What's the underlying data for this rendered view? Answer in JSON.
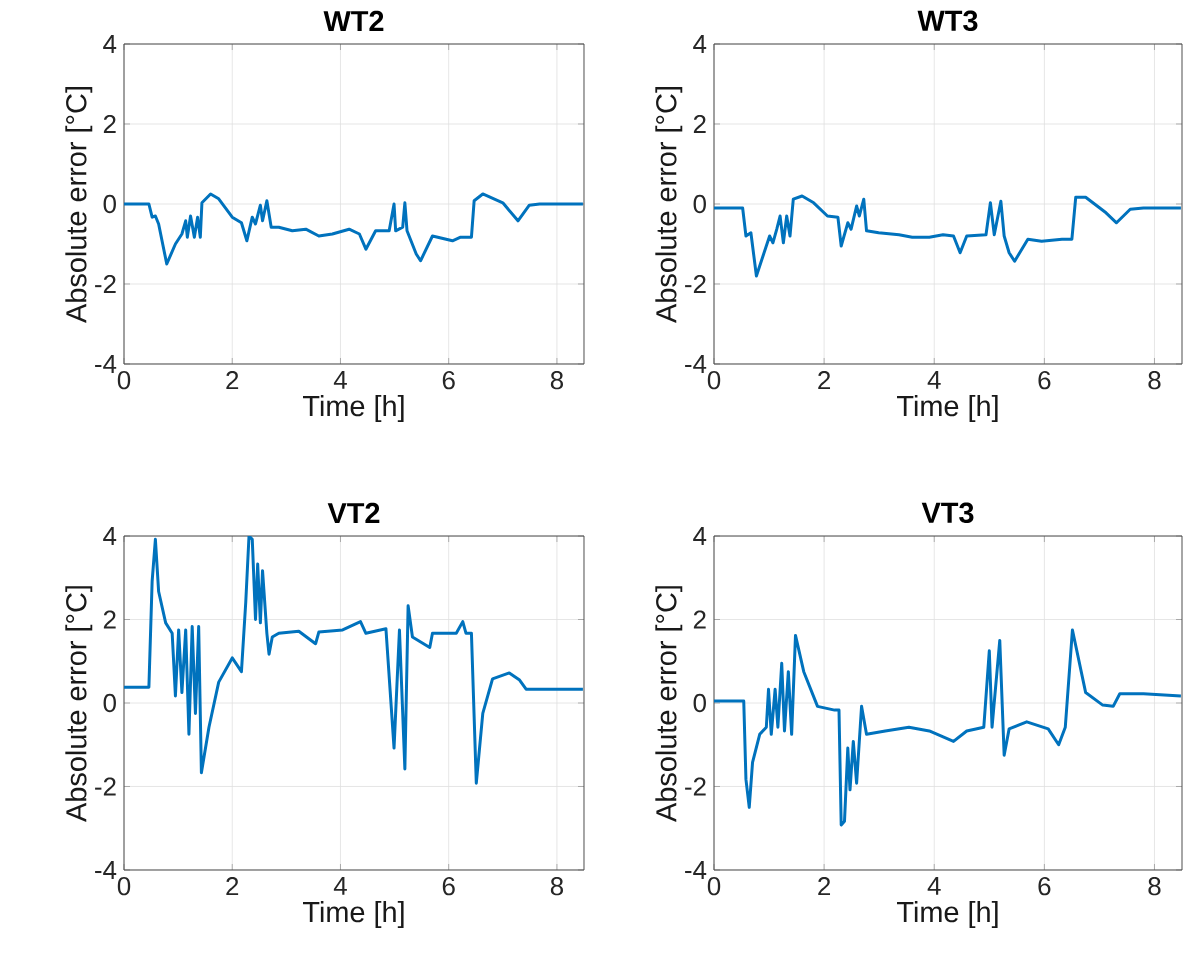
{
  "chart_data": [
    {
      "type": "line",
      "title": "WT2",
      "xlabel": "Time [h]",
      "ylabel": "Absolute error [°C]",
      "xlim": [
        0,
        8.5
      ],
      "ylim": [
        -4,
        4
      ],
      "xticks": [
        0,
        2,
        4,
        6,
        8
      ],
      "yticks": [
        -4,
        -2,
        0,
        2,
        4
      ],
      "grid": true,
      "color": "#0072bd",
      "x": [
        0,
        0.46,
        0.52,
        0.58,
        0.64,
        0.79,
        0.95,
        1.07,
        1.14,
        1.17,
        1.23,
        1.3,
        1.36,
        1.41,
        1.44,
        1.6,
        1.75,
        2.0,
        2.17,
        2.27,
        2.37,
        2.43,
        2.52,
        2.56,
        2.64,
        2.72,
        2.86,
        3.11,
        3.36,
        3.6,
        3.85,
        4.16,
        4.35,
        4.47,
        4.65,
        4.9,
        4.99,
        5.02,
        5.15,
        5.19,
        5.23,
        5.4,
        5.48,
        5.7,
        6.07,
        6.22,
        6.42,
        6.47,
        6.63,
        7.0,
        7.28,
        7.49,
        7.68,
        8.48
      ],
      "values": [
        0,
        0,
        -0.33,
        -0.3,
        -0.5,
        -1.5,
        -1.0,
        -0.75,
        -0.42,
        -0.83,
        -0.3,
        -0.83,
        -0.33,
        -0.83,
        0.03,
        0.25,
        0.13,
        -0.33,
        -0.47,
        -0.92,
        -0.33,
        -0.5,
        -0.03,
        -0.42,
        0.08,
        -0.58,
        -0.58,
        -0.67,
        -0.63,
        -0.8,
        -0.75,
        -0.63,
        -0.75,
        -1.13,
        -0.67,
        -0.67,
        0,
        -0.67,
        -0.58,
        0.03,
        -0.67,
        -1.25,
        -1.42,
        -0.8,
        -0.92,
        -0.83,
        -0.83,
        0.08,
        0.25,
        0.03,
        -0.42,
        -0.03,
        0,
        0
      ]
    },
    {
      "type": "line",
      "title": "WT3",
      "xlabel": "Time [h]",
      "ylabel": "Absolute error [°C]",
      "xlim": [
        0,
        8.5
      ],
      "ylim": [
        -4,
        4
      ],
      "xticks": [
        0,
        2,
        4,
        6,
        8
      ],
      "yticks": [
        -4,
        -2,
        0,
        2,
        4
      ],
      "grid": true,
      "color": "#0072bd",
      "x": [
        0,
        0.52,
        0.58,
        0.67,
        0.77,
        0.89,
        1.01,
        1.07,
        1.14,
        1.2,
        1.26,
        1.32,
        1.38,
        1.44,
        1.6,
        1.81,
        2.06,
        2.25,
        2.31,
        2.43,
        2.49,
        2.59,
        2.64,
        2.72,
        2.77,
        2.99,
        3.36,
        3.6,
        3.91,
        4.16,
        4.35,
        4.47,
        4.59,
        4.94,
        5.02,
        5.09,
        5.21,
        5.27,
        5.36,
        5.46,
        5.7,
        5.95,
        6.32,
        6.5,
        6.57,
        6.75,
        7.12,
        7.31,
        7.56,
        7.8,
        8.48
      ],
      "values": [
        -0.1,
        -0.1,
        -0.8,
        -0.72,
        -1.8,
        -1.3,
        -0.8,
        -0.97,
        -0.63,
        -0.3,
        -0.97,
        -0.3,
        -0.8,
        0.12,
        0.2,
        0.03,
        -0.3,
        -0.33,
        -1.05,
        -0.47,
        -0.63,
        -0.05,
        -0.3,
        0.12,
        -0.67,
        -0.72,
        -0.77,
        -0.83,
        -0.83,
        -0.77,
        -0.8,
        -1.22,
        -0.8,
        -0.77,
        0.03,
        -0.77,
        0.07,
        -0.8,
        -1.22,
        -1.43,
        -0.88,
        -0.93,
        -0.88,
        -0.88,
        0.17,
        0.17,
        -0.22,
        -0.47,
        -0.13,
        -0.1,
        -0.1
      ]
    },
    {
      "type": "line",
      "title": "VT2",
      "xlabel": "Time [h]",
      "ylabel": "Absolute error [°C]",
      "xlim": [
        0,
        8.5
      ],
      "ylim": [
        -4,
        4
      ],
      "xticks": [
        0,
        2,
        4,
        6,
        8
      ],
      "yticks": [
        -4,
        -2,
        0,
        2,
        4
      ],
      "grid": true,
      "color": "#0072bd",
      "x": [
        0,
        0.46,
        0.52,
        0.58,
        0.64,
        0.77,
        0.89,
        0.95,
        1.01,
        1.07,
        1.14,
        1.2,
        1.26,
        1.32,
        1.38,
        1.43,
        1.57,
        1.75,
        2.0,
        2.17,
        2.25,
        2.31,
        2.37,
        2.43,
        2.47,
        2.52,
        2.56,
        2.64,
        2.68,
        2.74,
        2.86,
        3.23,
        3.54,
        3.6,
        4.04,
        4.37,
        4.47,
        4.84,
        4.99,
        5.09,
        5.19,
        5.25,
        5.33,
        5.65,
        5.7,
        6.14,
        6.26,
        6.32,
        6.42,
        6.51,
        6.63,
        6.81,
        7.12,
        7.31,
        7.43,
        8.48
      ],
      "values": [
        0.38,
        0.38,
        2.92,
        3.92,
        2.67,
        1.92,
        1.67,
        0.17,
        1.75,
        0.25,
        1.75,
        -0.75,
        1.83,
        -0.25,
        1.83,
        -1.67,
        -0.58,
        0.5,
        1.08,
        0.75,
        2.42,
        4.0,
        3.92,
        2.0,
        3.33,
        1.92,
        3.17,
        1.67,
        1.17,
        1.58,
        1.67,
        1.72,
        1.42,
        1.7,
        1.75,
        1.95,
        1.67,
        1.78,
        -1.08,
        1.75,
        -1.58,
        2.33,
        1.58,
        1.33,
        1.67,
        1.67,
        1.95,
        1.67,
        1.67,
        -1.92,
        -0.25,
        0.58,
        0.72,
        0.55,
        0.33,
        0.33
      ]
    },
    {
      "type": "line",
      "title": "VT3",
      "xlabel": "Time [h]",
      "ylabel": "Absolute error [°C]",
      "xlim": [
        0,
        8.5
      ],
      "ylim": [
        -4,
        4
      ],
      "xticks": [
        0,
        2,
        4,
        6,
        8
      ],
      "yticks": [
        -4,
        -2,
        0,
        2,
        4
      ],
      "grid": true,
      "color": "#0072bd",
      "x": [
        0,
        0.54,
        0.58,
        0.64,
        0.7,
        0.83,
        0.95,
        0.99,
        1.04,
        1.11,
        1.16,
        1.23,
        1.28,
        1.35,
        1.41,
        1.48,
        1.63,
        1.88,
        2.19,
        2.27,
        2.31,
        2.37,
        2.43,
        2.47,
        2.53,
        2.59,
        2.68,
        2.77,
        3.11,
        3.54,
        3.91,
        4.35,
        4.59,
        4.9,
        5.0,
        5.05,
        5.19,
        5.27,
        5.36,
        5.68,
        6.07,
        6.26,
        6.38,
        6.51,
        6.75,
        7.06,
        7.25,
        7.37,
        7.8,
        8.48
      ],
      "values": [
        0.05,
        0.05,
        -1.83,
        -2.5,
        -1.42,
        -0.75,
        -0.58,
        0.33,
        -0.75,
        0.33,
        -0.58,
        0.95,
        -0.67,
        0.75,
        -0.75,
        1.62,
        0.75,
        -0.08,
        -0.17,
        -0.17,
        -2.92,
        -2.83,
        -1.08,
        -2.08,
        -0.92,
        -1.92,
        -0.08,
        -0.75,
        -0.67,
        -0.58,
        -0.67,
        -0.92,
        -0.67,
        -0.58,
        1.25,
        -0.58,
        1.5,
        -1.25,
        -0.62,
        -0.45,
        -0.62,
        -1.0,
        -0.58,
        1.75,
        0.25,
        -0.05,
        -0.08,
        0.22,
        0.22,
        0.17
      ]
    }
  ]
}
